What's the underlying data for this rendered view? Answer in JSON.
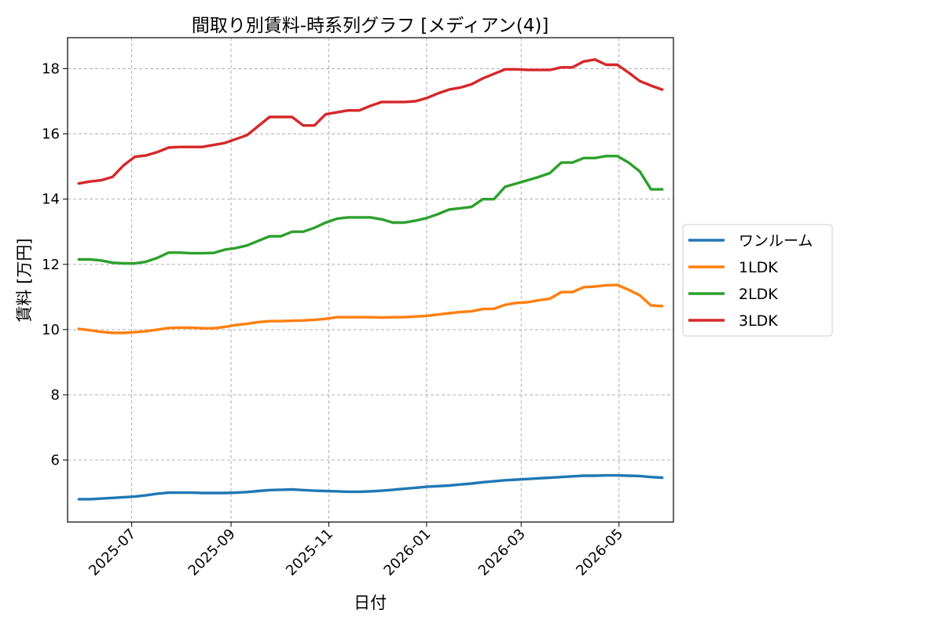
{
  "chart_data": {
    "type": "line",
    "title": "間取り別賃料-時系列グラフ [メディアン(4)]",
    "xlabel": "日付",
    "ylabel": "賃料 [万円]",
    "xlim": [
      "2025-05-22",
      "2026-06-04"
    ],
    "ylim": [
      4.1,
      18.95
    ],
    "x_ticks": [
      "2025-07",
      "2025-09",
      "2025-11",
      "2026-01",
      "2026-03",
      "2026-05"
    ],
    "y_ticks": [
      6,
      8,
      10,
      12,
      14,
      16,
      18
    ],
    "grid": true,
    "legend_position": "right-outside",
    "x": [
      "2025-05-29",
      "2025-06-05",
      "2025-06-12",
      "2025-06-19",
      "2025-06-26",
      "2025-07-03",
      "2025-07-10",
      "2025-07-17",
      "2025-07-24",
      "2025-07-31",
      "2025-08-07",
      "2025-08-14",
      "2025-08-21",
      "2025-08-28",
      "2025-09-04",
      "2025-09-11",
      "2025-09-18",
      "2025-09-25",
      "2025-10-02",
      "2025-10-09",
      "2025-10-16",
      "2025-10-23",
      "2025-10-30",
      "2025-11-06",
      "2025-11-13",
      "2025-11-20",
      "2025-11-27",
      "2025-12-04",
      "2025-12-11",
      "2025-12-18",
      "2025-12-25",
      "2026-01-01",
      "2026-01-08",
      "2026-01-15",
      "2026-01-22",
      "2026-01-29",
      "2026-02-05",
      "2026-02-12",
      "2026-02-19",
      "2026-02-26",
      "2026-03-05",
      "2026-03-12",
      "2026-03-19",
      "2026-03-26",
      "2026-04-02",
      "2026-04-09",
      "2026-04-16",
      "2026-04-23",
      "2026-04-30",
      "2026-05-07",
      "2026-05-14",
      "2026-05-21",
      "2026-05-28"
    ],
    "series": [
      {
        "name": "ワンルーム",
        "color": "#1f77b4",
        "values": [
          4.8,
          4.8,
          4.82,
          4.84,
          4.86,
          4.88,
          4.92,
          4.97,
          5.0,
          5.0,
          5.0,
          4.99,
          4.99,
          4.99,
          5.0,
          5.02,
          5.05,
          5.08,
          5.09,
          5.1,
          5.08,
          5.06,
          5.05,
          5.04,
          5.03,
          5.03,
          5.04,
          5.06,
          5.09,
          5.12,
          5.15,
          5.18,
          5.2,
          5.22,
          5.25,
          5.28,
          5.32,
          5.35,
          5.38,
          5.4,
          5.42,
          5.44,
          5.46,
          5.48,
          5.5,
          5.52,
          5.52,
          5.53,
          5.53,
          5.52,
          5.51,
          5.48,
          5.46
        ]
      },
      {
        "name": "1LDK",
        "color": "#ff7f0e",
        "values": [
          10.02,
          9.98,
          9.93,
          9.9,
          9.9,
          9.92,
          9.95,
          10.0,
          10.05,
          10.06,
          10.06,
          10.04,
          10.04,
          10.08,
          10.14,
          10.18,
          10.23,
          10.26,
          10.26,
          10.27,
          10.28,
          10.3,
          10.33,
          10.38,
          10.38,
          10.38,
          10.38,
          10.37,
          10.38,
          10.38,
          10.4,
          10.42,
          10.46,
          10.5,
          10.54,
          10.56,
          10.63,
          10.64,
          10.76,
          10.82,
          10.84,
          10.9,
          10.95,
          11.15,
          11.15,
          11.3,
          11.32,
          11.36,
          11.37,
          11.22,
          11.05,
          10.74,
          10.72
        ]
      },
      {
        "name": "2LDK",
        "color": "#2ca02c",
        "values": [
          12.15,
          12.15,
          12.12,
          12.05,
          12.03,
          12.03,
          12.08,
          12.2,
          12.36,
          12.36,
          12.34,
          12.34,
          12.35,
          12.45,
          12.5,
          12.58,
          12.72,
          12.86,
          12.86,
          13.0,
          13.0,
          13.12,
          13.28,
          13.4,
          13.44,
          13.44,
          13.44,
          13.38,
          13.28,
          13.28,
          13.34,
          13.42,
          13.54,
          13.68,
          13.72,
          13.76,
          14.0,
          14.0,
          14.38,
          14.48,
          14.58,
          14.68,
          14.8,
          15.12,
          15.12,
          15.26,
          15.26,
          15.32,
          15.32,
          15.12,
          14.85,
          14.3,
          14.3
        ]
      },
      {
        "name": "3LDK",
        "color": "#d62728",
        "values": [
          14.48,
          14.54,
          14.58,
          14.68,
          15.04,
          15.3,
          15.34,
          15.44,
          15.58,
          15.6,
          15.6,
          15.6,
          15.66,
          15.72,
          15.84,
          15.96,
          16.24,
          16.52,
          16.52,
          16.52,
          16.26,
          16.26,
          16.6,
          16.66,
          16.72,
          16.72,
          16.86,
          16.98,
          16.98,
          16.98,
          17.0,
          17.1,
          17.24,
          17.36,
          17.42,
          17.52,
          17.7,
          17.84,
          17.98,
          17.98,
          17.96,
          17.96,
          17.96,
          18.04,
          18.04,
          18.22,
          18.28,
          18.12,
          18.12,
          17.88,
          17.62,
          17.48,
          17.36
        ]
      }
    ]
  }
}
